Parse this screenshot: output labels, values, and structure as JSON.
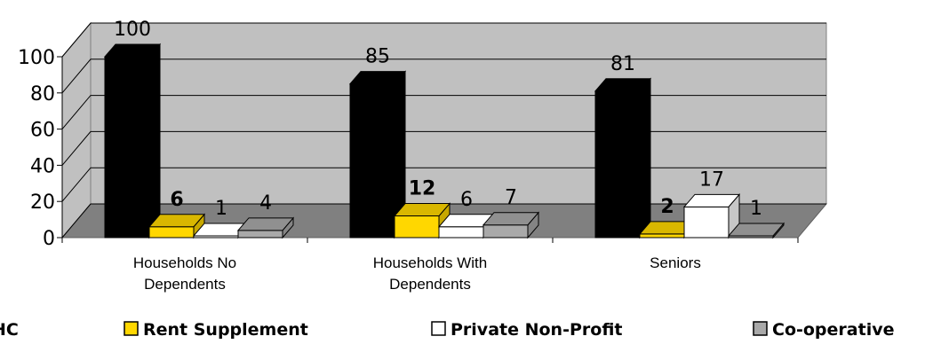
{
  "chart_data": {
    "type": "bar",
    "categories": [
      "Households No Dependents",
      "Households With Dependents",
      "Seniors"
    ],
    "series": [
      {
        "name": "HC",
        "values": [
          100,
          85,
          81
        ],
        "labels": [
          "100",
          "85",
          "81"
        ],
        "bold_labels": false
      },
      {
        "name": "Rent Supplement",
        "values": [
          6,
          12,
          2
        ],
        "labels": [
          "6",
          "12",
          "2"
        ],
        "bold_labels": true
      },
      {
        "name": "Private Non-Profit",
        "values": [
          1,
          6,
          17
        ],
        "labels": [
          "1",
          "6",
          "17"
        ],
        "bold_labels": false
      },
      {
        "name": "Co-operative",
        "values": [
          4,
          7,
          1
        ],
        "labels": [
          "4",
          "7",
          "1"
        ],
        "bold_labels": false
      }
    ],
    "colors": [
      "#000000",
      "#FFD700",
      "#FFFFFF",
      "#A9A9A9"
    ],
    "ylim": [
      0,
      100
    ],
    "yticks": [
      "0",
      "20",
      "40",
      "60",
      "80",
      "100"
    ],
    "title": "",
    "xlabel": "",
    "ylabel": "",
    "grid": true,
    "legend_position": "bottom",
    "style": "3d-clustered-column",
    "wall_color": "#C0C0C0",
    "floor_color": "#808080"
  }
}
